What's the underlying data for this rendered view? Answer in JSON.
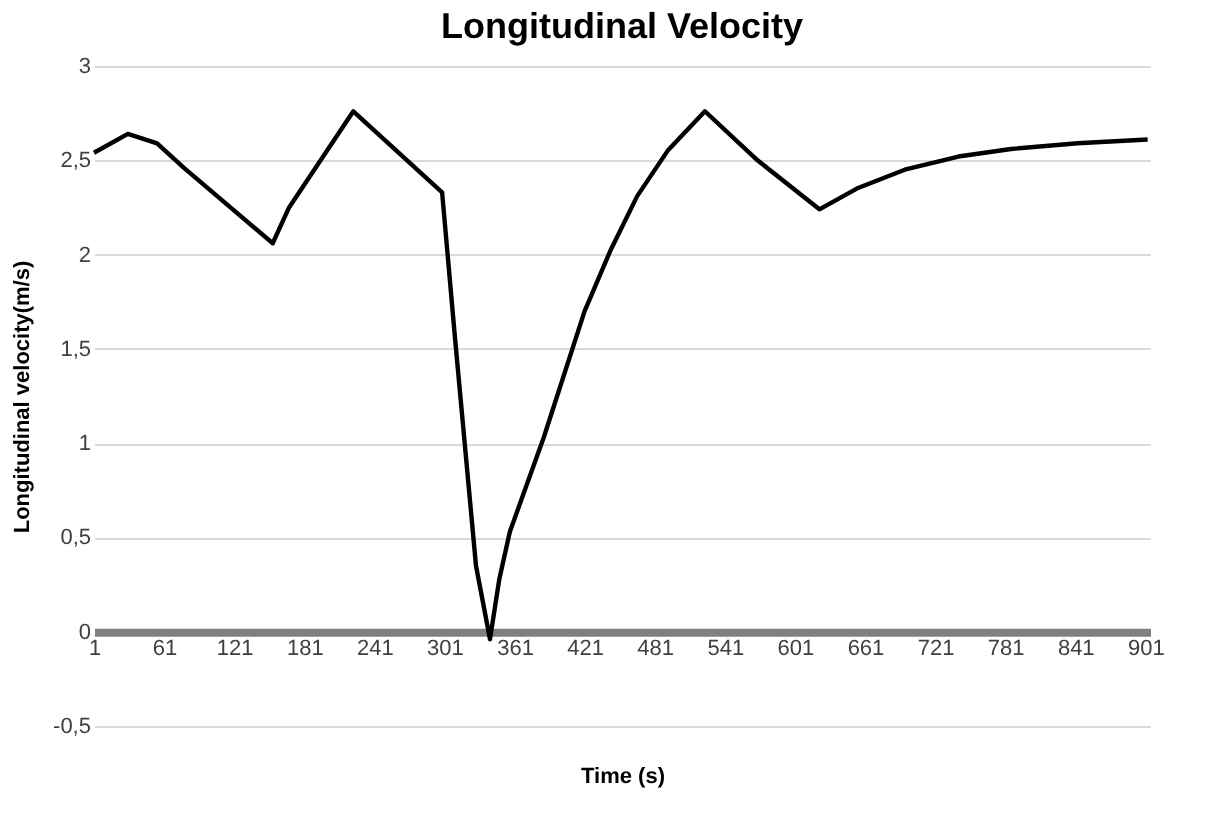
{
  "chart_data": {
    "type": "line",
    "title": "Longitudinal Velocity",
    "xlabel": "Time (s)",
    "ylabel": "Longitudinal velocity(m/s)",
    "x": [
      1,
      30,
      55,
      78,
      154,
      168,
      223,
      299,
      310,
      328,
      340,
      348,
      357,
      386,
      421,
      443,
      466,
      492,
      524,
      569,
      622,
      654,
      695,
      741,
      786,
      843,
      903
    ],
    "series": [
      {
        "color": "#000000",
        "values": [
          2.54,
          2.64,
          2.59,
          2.46,
          2.06,
          2.25,
          2.76,
          2.33,
          1.56,
          0.35,
          -0.04,
          0.28,
          0.53,
          1.03,
          1.7,
          2.02,
          2.31,
          2.55,
          2.76,
          2.5,
          2.24,
          2.35,
          2.45,
          2.52,
          2.56,
          2.59,
          2.61
        ]
      }
    ],
    "xlim": [
      1,
      905
    ],
    "xticks": [
      1,
      61,
      121,
      181,
      241,
      301,
      361,
      421,
      481,
      541,
      601,
      661,
      721,
      781,
      841,
      901
    ],
    "ylim": [
      -0.5,
      3
    ],
    "yticks": [
      {
        "value": -0.5,
        "label": "-0,5"
      },
      0,
      {
        "value": 0.5,
        "label": "0,5"
      },
      1,
      {
        "value": 1.5,
        "label": "1,5"
      },
      2,
      {
        "value": 2.5,
        "label": "2,5"
      },
      3
    ],
    "grid": "y",
    "marker": "none",
    "line_style": "solid"
  }
}
